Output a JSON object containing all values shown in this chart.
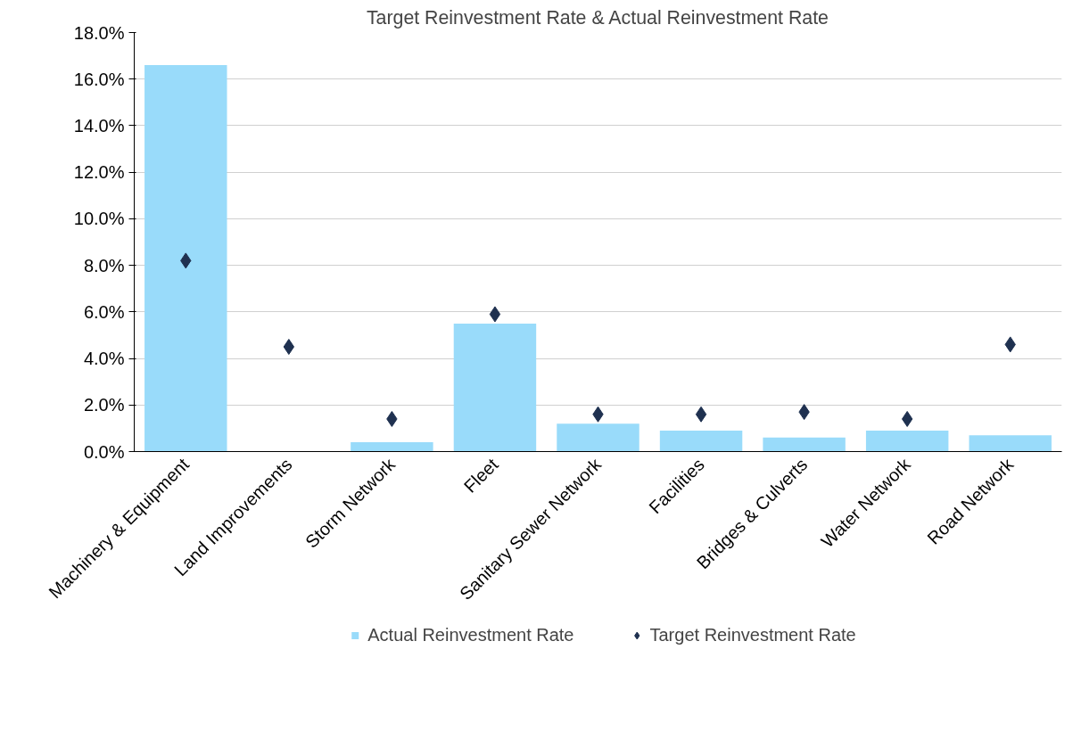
{
  "chart_data": {
    "type": "bar",
    "title": "Target Reinvestment Rate & Actual Reinvestment Rate",
    "categories": [
      "Machinery & Equipment",
      "Land Improvements",
      "Storm Network",
      "Fleet",
      "Sanitary Sewer Network",
      "Facilities",
      "Bridges & Culverts",
      "Water Network",
      "Road Network"
    ],
    "series": [
      {
        "name": "Actual Reinvestment Rate",
        "color": "#99dbfa",
        "values": [
          16.6,
          0,
          0.4,
          5.5,
          1.2,
          0.9,
          0.6,
          0.9,
          0.7
        ]
      },
      {
        "name": "Target Reinvestment Rate",
        "type": "scatter",
        "marker": "diamond",
        "color": "#1f3150",
        "values": [
          8.2,
          4.5,
          1.4,
          5.9,
          1.6,
          1.6,
          1.7,
          1.4,
          4.6
        ]
      }
    ],
    "ylim": [
      0,
      18
    ],
    "yticks": [
      {
        "value": 0,
        "label": "0.0%"
      },
      {
        "value": 2,
        "label": "2.0%"
      },
      {
        "value": 4,
        "label": "4.0%"
      },
      {
        "value": 6,
        "label": "6.0%"
      },
      {
        "value": 8,
        "label": "8.0%"
      },
      {
        "value": 10,
        "label": "10.0%"
      },
      {
        "value": 12,
        "label": "12.0%"
      },
      {
        "value": 14,
        "label": "14.0%"
      },
      {
        "value": 16,
        "label": "16.0%"
      },
      {
        "value": 18,
        "label": "18.0%"
      }
    ],
    "grid": "y",
    "legend": "bottom"
  }
}
